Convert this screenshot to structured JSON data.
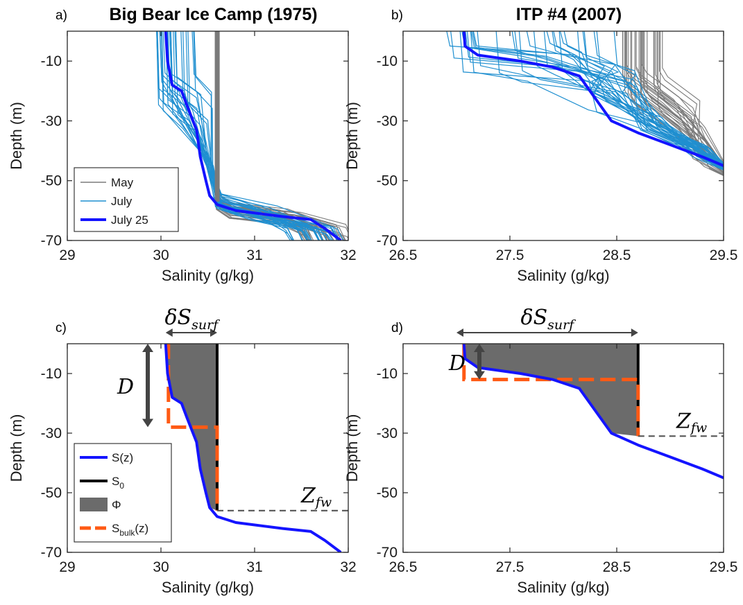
{
  "colors": {
    "may": "#7a7a7a",
    "july": "#1f8fd0",
    "highlight": "#1414ff",
    "s0": "#000000",
    "phi": "#6b6b6b",
    "sbulk": "#ff5a14",
    "zfw": "#555555",
    "arrow": "#444444"
  },
  "chart_data": [
    {
      "panel": "a)",
      "type": "line",
      "title": "Big Bear Ice Camp (1975)",
      "xlabel": "Salinity (g/kg)",
      "ylabel": "Depth (m)",
      "xlim": [
        29,
        32
      ],
      "ylim": [
        -70,
        0
      ],
      "xticks": [
        29,
        30,
        31,
        32
      ],
      "xtick_labels": [
        "29",
        "30",
        "31",
        "32"
      ],
      "yticks": [
        -10,
        -30,
        -50,
        -70
      ],
      "ytick_labels": [
        "-10",
        "-30",
        "-50",
        "-70"
      ],
      "legend": {
        "placement": "lower-left",
        "entries": [
          {
            "label": "May",
            "color": "#7a7a7a"
          },
          {
            "label": "July",
            "color": "#1f8fd0"
          },
          {
            "label": "July 25",
            "color": "#1414ff"
          }
        ]
      },
      "series": [
        {
          "name": "May",
          "color": "#7a7a7a",
          "note": "profiles ~30.6 g/kg to -57 m then increase",
          "x": [
            30.6,
            30.6,
            30.61,
            30.62,
            30.7,
            31.0,
            31.5,
            31.9
          ],
          "y": [
            0,
            -40,
            -55,
            -58,
            -60,
            -61,
            -63,
            -67
          ]
        },
        {
          "name": "July",
          "color": "#1f8fd0",
          "x": [
            30.0,
            30.1,
            30.3,
            30.45,
            30.55,
            30.8,
            31.3,
            31.8
          ],
          "y": [
            0,
            -18,
            -25,
            -45,
            -56,
            -61,
            -63,
            -69
          ]
        },
        {
          "name": "July 25",
          "color": "#1414ff",
          "x": [
            30.05,
            30.07,
            30.12,
            30.22,
            30.28,
            30.38,
            30.42,
            30.48,
            30.52,
            30.6,
            30.8,
            31.3,
            31.6,
            31.75,
            31.92
          ],
          "y": [
            0,
            -10,
            -18,
            -20,
            -25,
            -33,
            -42,
            -50,
            -55,
            -58,
            -60,
            -62,
            -63,
            -66,
            -70
          ]
        }
      ]
    },
    {
      "panel": "b)",
      "type": "line",
      "title": "ITP #4 (2007)",
      "xlabel": "Salinity (g/kg)",
      "ylabel": "Depth (m)",
      "xlim": [
        26.5,
        29.5
      ],
      "ylim": [
        -70,
        0
      ],
      "xticks": [
        26.5,
        27.5,
        28.5,
        29.5
      ],
      "xtick_labels": [
        "26.5",
        "27.5",
        "28.5",
        "29.5"
      ],
      "yticks": [
        -10,
        -30,
        -50,
        -70
      ],
      "ytick_labels": [
        "-10",
        "-30",
        "-50",
        "-70"
      ],
      "series": [
        {
          "name": "",
          "color": "#7a7a7a",
          "x": [
            28.7,
            28.7,
            28.75,
            29.0,
            29.5
          ],
          "y": [
            0,
            -20,
            -28,
            -36,
            -42
          ]
        },
        {
          "name": "",
          "color": "#1f8fd0",
          "x": [
            27.0,
            27.1,
            27.8,
            28.2,
            28.5,
            29.0,
            29.5
          ],
          "y": [
            0,
            -9,
            -13,
            -20,
            -30,
            -38,
            -44
          ]
        },
        {
          "name": "",
          "color": "#1414ff",
          "x": [
            27.07,
            27.08,
            27.2,
            27.6,
            27.9,
            28.15,
            28.25,
            28.35,
            28.45,
            28.7,
            29.0,
            29.3,
            29.5
          ],
          "y": [
            0,
            -5,
            -8,
            -10,
            -12,
            -15,
            -20,
            -25,
            -30,
            -34,
            -38,
            -42,
            -45
          ]
        }
      ]
    },
    {
      "panel": "c)",
      "type": "line",
      "xlabel": "Salinity (g/kg)",
      "ylabel": "Depth (m)",
      "xlim": [
        29,
        32
      ],
      "ylim": [
        -70,
        0
      ],
      "xticks": [
        29,
        30,
        31,
        32
      ],
      "xtick_labels": [
        "29",
        "30",
        "31",
        "32"
      ],
      "yticks": [
        -10,
        -30,
        -50,
        -70
      ],
      "ytick_labels": [
        "-10",
        "-30",
        "-50",
        "-70"
      ],
      "annotations": {
        "dS_label": "δS",
        "dS_sub": "surf",
        "D_label": "D",
        "Zfw_label": "Z",
        "Zfw_sub": "fw",
        "dS_range": [
          30.05,
          30.6
        ],
        "D_range": [
          0,
          -28
        ],
        "Zfw_depth": -56
      },
      "legend": {
        "placement": "lower-left",
        "entries": [
          {
            "label": "S(z)",
            "sub": "",
            "color": "#1414ff",
            "kind": "line"
          },
          {
            "label": "S",
            "sub": "0",
            "color": "#000000",
            "kind": "line"
          },
          {
            "label": "Φ",
            "sub": "",
            "color": "#6b6b6b",
            "kind": "patch"
          },
          {
            "label": "S",
            "sub": "bulk",
            "suffix": "(z)",
            "color": "#ff5a14",
            "kind": "dash"
          }
        ]
      },
      "s0": 30.6,
      "sbulk": {
        "x": [
          30.08,
          30.08,
          30.6,
          30.6
        ],
        "y": [
          0,
          -28,
          -28,
          -56
        ]
      },
      "series": [
        {
          "name": "S(z)",
          "color": "#1414ff",
          "x": [
            30.05,
            30.07,
            30.12,
            30.22,
            30.28,
            30.38,
            30.42,
            30.48,
            30.52,
            30.6,
            30.8,
            31.3,
            31.6,
            31.75,
            31.92
          ],
          "y": [
            0,
            -10,
            -18,
            -20,
            -25,
            -33,
            -42,
            -50,
            -55,
            -58,
            -60,
            -62,
            -63,
            -66,
            -70
          ]
        }
      ]
    },
    {
      "panel": "d)",
      "type": "line",
      "xlabel": "Salinity (g/kg)",
      "ylabel": "Depth (m)",
      "xlim": [
        26.5,
        29.5
      ],
      "ylim": [
        -70,
        0
      ],
      "xticks": [
        26.5,
        27.5,
        28.5,
        29.5
      ],
      "xtick_labels": [
        "26.5",
        "27.5",
        "28.5",
        "29.5"
      ],
      "yticks": [
        -10,
        -30,
        -50,
        -70
      ],
      "ytick_labels": [
        "-10",
        "-30",
        "-50",
        "-70"
      ],
      "annotations": {
        "dS_label": "δS",
        "dS_sub": "surf",
        "D_label": "D",
        "Zfw_label": "Z",
        "Zfw_sub": "fw",
        "dS_range": [
          27.0,
          28.7
        ],
        "D_range": [
          0,
          -12
        ],
        "Zfw_depth": -31
      },
      "s0": 28.7,
      "sbulk": {
        "x": [
          27.07,
          27.07,
          28.7,
          28.7
        ],
        "y": [
          0,
          -12,
          -12,
          -31
        ]
      },
      "series": [
        {
          "name": "S(z)",
          "color": "#1414ff",
          "x": [
            27.07,
            27.08,
            27.2,
            27.6,
            27.9,
            28.15,
            28.25,
            28.35,
            28.45,
            28.7,
            29.0,
            29.3,
            29.5
          ],
          "y": [
            0,
            -5,
            -8,
            -10,
            -12,
            -15,
            -20,
            -25,
            -30,
            -34,
            -38,
            -42,
            -45
          ]
        }
      ]
    }
  ]
}
